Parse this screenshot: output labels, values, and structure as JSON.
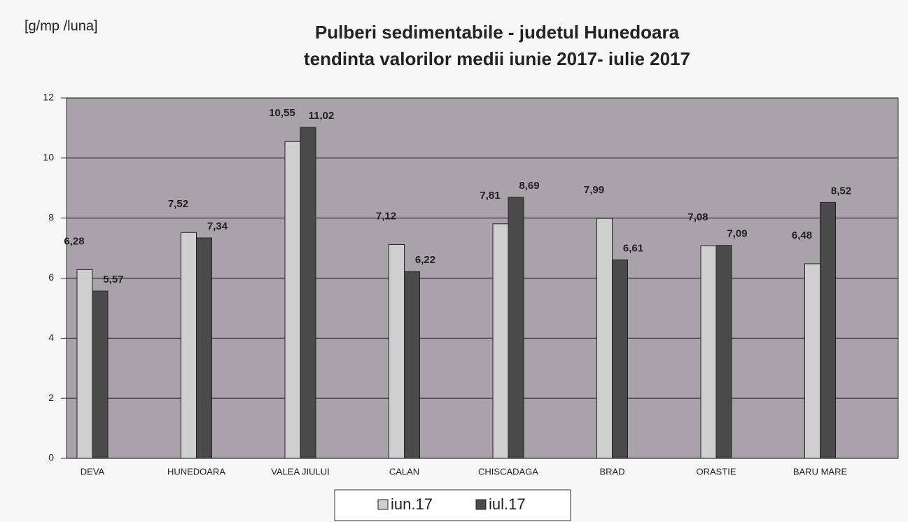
{
  "chart_data": {
    "type": "bar",
    "title": "Pulberi sedimentabile - judetul Hunedoara",
    "subtitle": "tendinta valorilor medii iunie 2017- iulie 2017",
    "y_label": "[g/mp /luna]",
    "categories": [
      "DEVA",
      "HUNEDOARA",
      "VALEA JIULUI",
      "CALAN",
      "CHISCADAGA",
      "BRAD",
      "ORASTIE",
      "BARU MARE"
    ],
    "series": [
      {
        "name": "iun.17",
        "color": "#cfcfcf",
        "values": [
          6.28,
          7.52,
          10.55,
          7.12,
          7.81,
          7.99,
          7.08,
          6.48
        ],
        "value_labels": [
          "6,28",
          "7,52",
          "10,55",
          "7,12",
          "7,81",
          "7,99",
          "7,08",
          "6,48"
        ]
      },
      {
        "name": "iul.17",
        "color": "#4a4a4a",
        "values": [
          5.57,
          7.34,
          11.02,
          6.22,
          8.69,
          6.61,
          7.09,
          8.52
        ],
        "value_labels": [
          "5,57",
          "7,34",
          "11,02",
          "6,22",
          "8,69",
          "6,61",
          "7,09",
          "8,52"
        ]
      }
    ],
    "ylim": [
      0,
      12
    ],
    "yticks": [
      0,
      2,
      4,
      6,
      8,
      10,
      12
    ],
    "grid": true,
    "legend": "bottom"
  }
}
